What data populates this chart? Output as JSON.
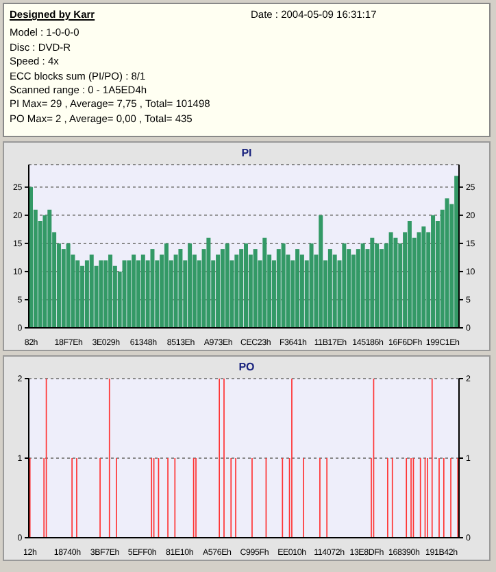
{
  "chart_data": [
    {
      "type": "other",
      "title": "Designed by Karr",
      "annotations": [
        "Date : 2004-05-09 16:31:17",
        "Model : 1-0-0-0",
        "Disc : DVD-R",
        "Speed : 4x",
        "ECC blocks sum (PI/PO) : 8/1",
        "Scanned range : 0 - 1A5ED4h",
        "PI Max= 29 , Average= 7,75 , Total= 101498",
        "PO Max= 2 , Average= 0,00 , Total= 435"
      ]
    },
    {
      "type": "bar",
      "title": "PI",
      "categories": [
        "82h",
        null,
        null,
        null,
        null,
        null,
        null,
        null,
        "18F7Eh",
        null,
        null,
        null,
        null,
        null,
        null,
        null,
        "3E029h",
        null,
        null,
        null,
        null,
        null,
        null,
        null,
        "61348h",
        null,
        null,
        null,
        null,
        null,
        null,
        null,
        "8513Eh",
        null,
        null,
        null,
        null,
        null,
        null,
        null,
        "A973Eh",
        null,
        null,
        null,
        null,
        null,
        null,
        null,
        "CEC23h",
        null,
        null,
        null,
        null,
        null,
        null,
        null,
        "F3641h",
        null,
        null,
        null,
        null,
        null,
        null,
        null,
        "11B17Eh",
        null,
        null,
        null,
        null,
        null,
        null,
        null,
        "145186h",
        null,
        null,
        null,
        null,
        null,
        null,
        null,
        "16F6DFh",
        null,
        null,
        null,
        null,
        null,
        null,
        null,
        "199C1Eh",
        null,
        null,
        null
      ],
      "values": [
        25,
        21,
        19,
        20,
        21,
        17,
        15,
        14,
        15,
        13,
        12,
        11,
        12,
        13,
        11,
        12,
        12,
        13,
        11,
        10,
        12,
        12,
        13,
        12,
        13,
        12,
        14,
        12,
        13,
        15,
        12,
        13,
        14,
        12,
        15,
        13,
        12,
        14,
        16,
        12,
        13,
        14,
        15,
        12,
        13,
        14,
        15,
        13,
        14,
        12,
        16,
        13,
        12,
        14,
        15,
        13,
        12,
        14,
        13,
        12,
        15,
        13,
        20,
        12,
        14,
        13,
        12,
        15,
        14,
        13,
        14,
        15,
        14,
        16,
        15,
        14,
        15,
        17,
        16,
        15,
        17,
        19,
        16,
        17,
        18,
        17,
        20,
        19,
        21,
        23,
        22,
        27
      ],
      "color": "#339966",
      "ylim": [
        0,
        29
      ],
      "yticks": [
        0,
        5,
        10,
        15,
        20,
        25
      ],
      "y2lim": [
        0,
        29
      ],
      "y2ticks": [
        0,
        5,
        10,
        15,
        20,
        25
      ],
      "grid": "y"
    },
    {
      "type": "bar",
      "title": "PO",
      "categories": [
        "12h",
        null,
        null,
        null,
        null,
        null,
        null,
        null,
        null,
        null,
        null,
        null,
        null,
        null,
        null,
        null,
        "18740h",
        null,
        null,
        null,
        null,
        null,
        null,
        null,
        null,
        null,
        null,
        null,
        null,
        null,
        null,
        null,
        "3BF7Eh",
        null,
        null,
        null,
        null,
        null,
        null,
        null,
        null,
        null,
        null,
        null,
        null,
        null,
        null,
        null,
        "5EFF0h",
        null,
        null,
        null,
        null,
        null,
        null,
        null,
        null,
        null,
        null,
        null,
        null,
        null,
        null,
        null,
        "81E10h",
        null,
        null,
        null,
        null,
        null,
        null,
        null,
        null,
        null,
        null,
        null,
        null,
        null,
        null,
        null,
        "A576Eh",
        null,
        null,
        null,
        null,
        null,
        null,
        null,
        null,
        null,
        null,
        null,
        null,
        null,
        null,
        null,
        "C995Fh",
        null,
        null,
        null,
        null,
        null,
        null,
        null,
        null,
        null,
        null,
        null,
        null,
        null,
        null,
        null,
        "EE010h",
        null,
        null,
        null,
        null,
        null,
        null,
        null,
        null,
        null,
        null,
        null,
        null,
        null,
        null,
        null,
        "114072h",
        null,
        null,
        null,
        null,
        null,
        null,
        null,
        null,
        null,
        null,
        null,
        null,
        null,
        null,
        null,
        "13E8DFh",
        null,
        null,
        null,
        null,
        null,
        null,
        null,
        null,
        null,
        null,
        null,
        null,
        null,
        null,
        null,
        "168390h",
        null,
        null,
        null,
        null,
        null,
        null,
        null,
        null,
        null,
        null,
        null,
        null,
        null,
        null,
        null,
        "191B42h",
        null,
        null,
        null,
        null,
        null,
        null,
        null
      ],
      "values": [
        1,
        0,
        0,
        0,
        0,
        0,
        1,
        2,
        0,
        0,
        0,
        0,
        0,
        0,
        0,
        0,
        0,
        0,
        1,
        0,
        1,
        0,
        0,
        0,
        0,
        0,
        0,
        0,
        0,
        0,
        1,
        0,
        0,
        0,
        2,
        0,
        0,
        1,
        0,
        0,
        0,
        0,
        0,
        0,
        0,
        0,
        0,
        0,
        0,
        0,
        0,
        0,
        1,
        1,
        0,
        1,
        0,
        0,
        0,
        1,
        0,
        0,
        1,
        0,
        0,
        0,
        0,
        0,
        0,
        0,
        1,
        1,
        0,
        0,
        0,
        0,
        0,
        0,
        0,
        0,
        0,
        2,
        0,
        2,
        0,
        0,
        1,
        0,
        1,
        0,
        0,
        0,
        0,
        0,
        0,
        1,
        0,
        0,
        0,
        0,
        0,
        1,
        0,
        0,
        0,
        0,
        0,
        0,
        1,
        0,
        0,
        1,
        2,
        0,
        0,
        0,
        0,
        1,
        0,
        0,
        0,
        0,
        0,
        0,
        1,
        0,
        0,
        1,
        0,
        0,
        0,
        0,
        0,
        0,
        0,
        0,
        0,
        0,
        0,
        0,
        0,
        0,
        0,
        0,
        0,
        0,
        1,
        2,
        0,
        0,
        0,
        0,
        0,
        1,
        0,
        1,
        0,
        0,
        0,
        0,
        0,
        1,
        0,
        1,
        1,
        0,
        0,
        1,
        0,
        1,
        1,
        0,
        2,
        0,
        0,
        1,
        0,
        1,
        0,
        0,
        1,
        0,
        0,
        1
      ],
      "color": "#ff3333",
      "ylim": [
        0,
        2
      ],
      "yticks": [
        0,
        1,
        2
      ],
      "y2lim": [
        0,
        2
      ],
      "y2ticks": [
        0,
        1,
        2
      ],
      "grid": "y"
    }
  ]
}
